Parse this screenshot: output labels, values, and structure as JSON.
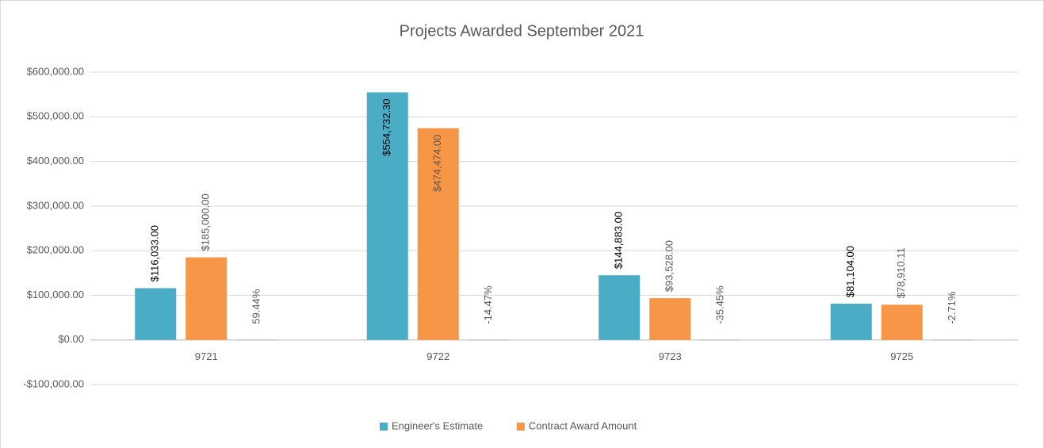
{
  "chart_data": {
    "type": "bar",
    "title": "Projects Awarded September 2021",
    "categories": [
      "9721",
      "9722",
      "9723",
      "9725"
    ],
    "series": [
      {
        "name": "Engineer's Estimate",
        "color": "#4bacc6",
        "values": [
          116033,
          554732.3,
          144883,
          81104
        ],
        "value_labels": [
          "$116,033.00",
          "$554,732.30",
          "$144,883.00",
          "$81,104.00"
        ]
      },
      {
        "name": "Contract Award Amount",
        "color": "#f79646",
        "values": [
          185000,
          474474,
          93528,
          78910.11
        ],
        "value_labels": [
          "$185,000.00",
          "$474,474.00",
          "$93,528.00",
          "$78,910.11"
        ]
      },
      {
        "color": "#a5a5a5",
        "values": [
          59.44,
          -14.47,
          -35.45,
          -2.71
        ],
        "value_labels": [
          "59.44%",
          "-14.47%",
          "-35.45%",
          "-2.71%"
        ]
      }
    ],
    "ylim": [
      -100000,
      600000
    ],
    "yticks": [
      {
        "value": -100000,
        "label": "-$100,000.00"
      },
      {
        "value": 0,
        "label": "$0.00"
      },
      {
        "value": 100000,
        "label": "$100,000.00"
      },
      {
        "value": 200000,
        "label": "$200,000.00"
      },
      {
        "value": 300000,
        "label": "$300,000.00"
      },
      {
        "value": 400000,
        "label": "$400,000.00"
      },
      {
        "value": 500000,
        "label": "$500,000.00"
      },
      {
        "value": 600000,
        "label": "$600,000.00"
      }
    ],
    "grid": true,
    "legend": "bottom"
  }
}
